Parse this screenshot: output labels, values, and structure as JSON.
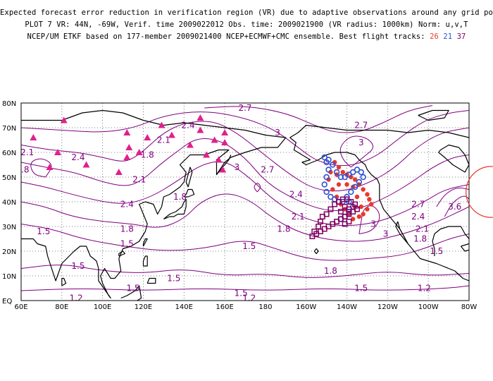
{
  "header": {
    "line1": "Expected forecast error reduction in verification region (VR) due to adaptive observations around any grid point.",
    "line2": "PLOT 7 VR: 44N, -69W, Verif. time 2009022012 Obs. time: 2009021900 (VR radius: 1000km) Norm: u,v,T",
    "line3_prefix": "NCEP/UM ETKF based on 177-member 2009021400 NCEP+ECMWF+CMC ensemble. Best flight tracks:",
    "tracks": [
      {
        "label": "26",
        "color": "#e8392b"
      },
      {
        "label": "21",
        "color": "#3050d0"
      },
      {
        "label": "37",
        "color": "#800060"
      }
    ]
  },
  "map": {
    "lon_range": [
      60,
      280
    ],
    "lat_range": [
      0,
      80
    ],
    "lat_labels": [
      "80N",
      "70N",
      "60N",
      "50N",
      "40N",
      "30N",
      "20N",
      "10N",
      "EQ"
    ],
    "lon_labels": [
      "60E",
      "80E",
      "100E",
      "120E",
      "140E",
      "160E",
      "180",
      "160W",
      "140W",
      "120W",
      "100W",
      "80W"
    ],
    "contour_color": "#800080",
    "contour_labels": [
      {
        "text": "2.4",
        "lon": 142,
        "lat": 71
      },
      {
        "text": "2.7",
        "lon": 170,
        "lat": 78
      },
      {
        "text": "3",
        "lon": 186,
        "lat": 68
      },
      {
        "text": "2.7",
        "lon": 227,
        "lat": 71
      },
      {
        "text": "3",
        "lon": 227,
        "lat": 64
      },
      {
        "text": "2.1",
        "lon": 130,
        "lat": 65
      },
      {
        "text": "1.8",
        "lon": 122,
        "lat": 59
      },
      {
        "text": "2.1",
        "lon": 63,
        "lat": 60
      },
      {
        "text": "2.4",
        "lon": 88,
        "lat": 58
      },
      {
        "text": ".8",
        "lon": 62,
        "lat": 53
      },
      {
        "text": "2.1",
        "lon": 118,
        "lat": 49
      },
      {
        "text": "3",
        "lon": 166,
        "lat": 54
      },
      {
        "text": "2.7",
        "lon": 181,
        "lat": 53
      },
      {
        "text": "2.4",
        "lon": 112,
        "lat": 39
      },
      {
        "text": "1.8",
        "lon": 138,
        "lat": 42
      },
      {
        "text": "2.4",
        "lon": 195,
        "lat": 43
      },
      {
        "text": "2.1",
        "lon": 196,
        "lat": 34
      },
      {
        "text": "1.8",
        "lon": 189,
        "lat": 29
      },
      {
        "text": "1.8",
        "lon": 112,
        "lat": 29
      },
      {
        "text": "1.5",
        "lon": 71,
        "lat": 28
      },
      {
        "text": "1.5",
        "lon": 112,
        "lat": 23
      },
      {
        "text": "1.5",
        "lon": 172,
        "lat": 22
      },
      {
        "text": "3",
        "lon": 233,
        "lat": 31
      },
      {
        "text": "3",
        "lon": 239,
        "lat": 27
      },
      {
        "text": "2.7",
        "lon": 255,
        "lat": 39
      },
      {
        "text": "2.4",
        "lon": 255,
        "lat": 34
      },
      {
        "text": "2.1",
        "lon": 257,
        "lat": 29
      },
      {
        "text": "1.8",
        "lon": 256,
        "lat": 25
      },
      {
        "text": "1.5",
        "lon": 264,
        "lat": 20
      },
      {
        "text": "3.6",
        "lon": 273,
        "lat": 38
      },
      {
        "text": "1.8",
        "lon": 212,
        "lat": 12
      },
      {
        "text": "1.5",
        "lon": 227,
        "lat": 5
      },
      {
        "text": "1.2",
        "lon": 258,
        "lat": 5
      },
      {
        "text": "1.5",
        "lon": 88,
        "lat": 14
      },
      {
        "text": "1.5",
        "lon": 135,
        "lat": 9
      },
      {
        "text": "1.5",
        "lon": 115,
        "lat": 5
      },
      {
        "text": "1.5",
        "lon": 168,
        "lat": 3
      },
      {
        "text": "1.2",
        "lon": 87,
        "lat": 1
      },
      {
        "text": "1.2",
        "lon": 172,
        "lat": 1
      }
    ],
    "triangles_color": "#e0208c",
    "triangles": [
      {
        "lon": 66,
        "lat": 66
      },
      {
        "lon": 81,
        "lat": 73
      },
      {
        "lon": 78,
        "lat": 60
      },
      {
        "lon": 74,
        "lat": 54
      },
      {
        "lon": 92,
        "lat": 55
      },
      {
        "lon": 112,
        "lat": 68
      },
      {
        "lon": 113,
        "lat": 62
      },
      {
        "lon": 112,
        "lat": 58
      },
      {
        "lon": 118,
        "lat": 60
      },
      {
        "lon": 122,
        "lat": 66
      },
      {
        "lon": 129,
        "lat": 71
      },
      {
        "lon": 134,
        "lat": 67
      },
      {
        "lon": 143,
        "lat": 63
      },
      {
        "lon": 148,
        "lat": 69
      },
      {
        "lon": 151,
        "lat": 59
      },
      {
        "lon": 155,
        "lat": 65
      },
      {
        "lon": 160,
        "lat": 68
      },
      {
        "lon": 160,
        "lat": 64
      },
      {
        "lon": 157,
        "lat": 57
      },
      {
        "lon": 159,
        "lat": 53
      },
      {
        "lon": 108,
        "lat": 52
      },
      {
        "lon": 148,
        "lat": 74
      }
    ],
    "verification_circle": {
      "lon": 291,
      "lat": 44,
      "radius_deg": 10,
      "color": "#e8392b"
    },
    "tracks": [
      {
        "name": "26",
        "marker": "dot",
        "color": "#e8392b",
        "points": [
          [
            -146,
            56
          ],
          [
            -144,
            54
          ],
          [
            -142,
            52
          ],
          [
            -140,
            51
          ],
          [
            -138,
            50
          ],
          [
            -136,
            49
          ],
          [
            -134,
            47
          ],
          [
            -132,
            45
          ],
          [
            -130,
            43
          ],
          [
            -129,
            41
          ],
          [
            -128,
            39
          ],
          [
            -130,
            37
          ],
          [
            -132,
            35
          ],
          [
            -134,
            34
          ],
          [
            -137,
            33
          ],
          [
            -139,
            35
          ],
          [
            -141,
            37
          ],
          [
            -143,
            39
          ],
          [
            -145,
            42
          ],
          [
            -147,
            45
          ],
          [
            -149,
            49
          ],
          [
            -148,
            52
          ],
          [
            -137,
            46
          ],
          [
            -135,
            42
          ],
          [
            -133,
            38
          ],
          [
            -136,
            38
          ],
          [
            -140,
            47
          ],
          [
            -144,
            47
          ],
          [
            -145,
            51
          ]
        ]
      },
      {
        "name": "21",
        "marker": "ring",
        "color": "#3050d0",
        "points": [
          [
            -151,
            58
          ],
          [
            -150,
            56
          ],
          [
            -149,
            53
          ],
          [
            -150,
            50
          ],
          [
            -151,
            47
          ],
          [
            -150,
            44
          ],
          [
            -148,
            42
          ],
          [
            -146,
            41
          ],
          [
            -144,
            40
          ],
          [
            -142,
            40
          ],
          [
            -140,
            42
          ],
          [
            -138,
            44
          ],
          [
            -136,
            46
          ],
          [
            -134,
            48
          ],
          [
            -132,
            50
          ],
          [
            -133,
            52
          ],
          [
            -135,
            53
          ],
          [
            -137,
            52
          ],
          [
            -139,
            51
          ],
          [
            -141,
            50
          ],
          [
            -143,
            50
          ],
          [
            -145,
            52
          ],
          [
            -147,
            55
          ],
          [
            -149,
            57
          ],
          [
            -139,
            40
          ],
          [
            -137,
            38
          ],
          [
            -139,
            36
          ],
          [
            -141,
            34
          ],
          [
            -143,
            33
          ]
        ]
      },
      {
        "name": "37",
        "marker": "square",
        "color": "#800060",
        "points": [
          [
            -157,
            26
          ],
          [
            -155,
            27
          ],
          [
            -153,
            28
          ],
          [
            -151,
            29
          ],
          [
            -149,
            30
          ],
          [
            -147,
            31
          ],
          [
            -145,
            32
          ],
          [
            -143,
            33
          ],
          [
            -141,
            34
          ],
          [
            -139,
            35
          ],
          [
            -137,
            36
          ],
          [
            -135,
            37
          ],
          [
            -136,
            39
          ],
          [
            -138,
            40
          ],
          [
            -140,
            41
          ],
          [
            -142,
            41
          ],
          [
            -144,
            40
          ],
          [
            -146,
            39
          ],
          [
            -148,
            37
          ],
          [
            -150,
            35
          ],
          [
            -152,
            34
          ],
          [
            -153,
            32
          ],
          [
            -154,
            30
          ],
          [
            -156,
            28
          ],
          [
            -141,
            38
          ],
          [
            -139,
            37
          ],
          [
            -143,
            36
          ],
          [
            -141,
            31
          ],
          [
            -139,
            32
          ]
        ]
      }
    ]
  }
}
